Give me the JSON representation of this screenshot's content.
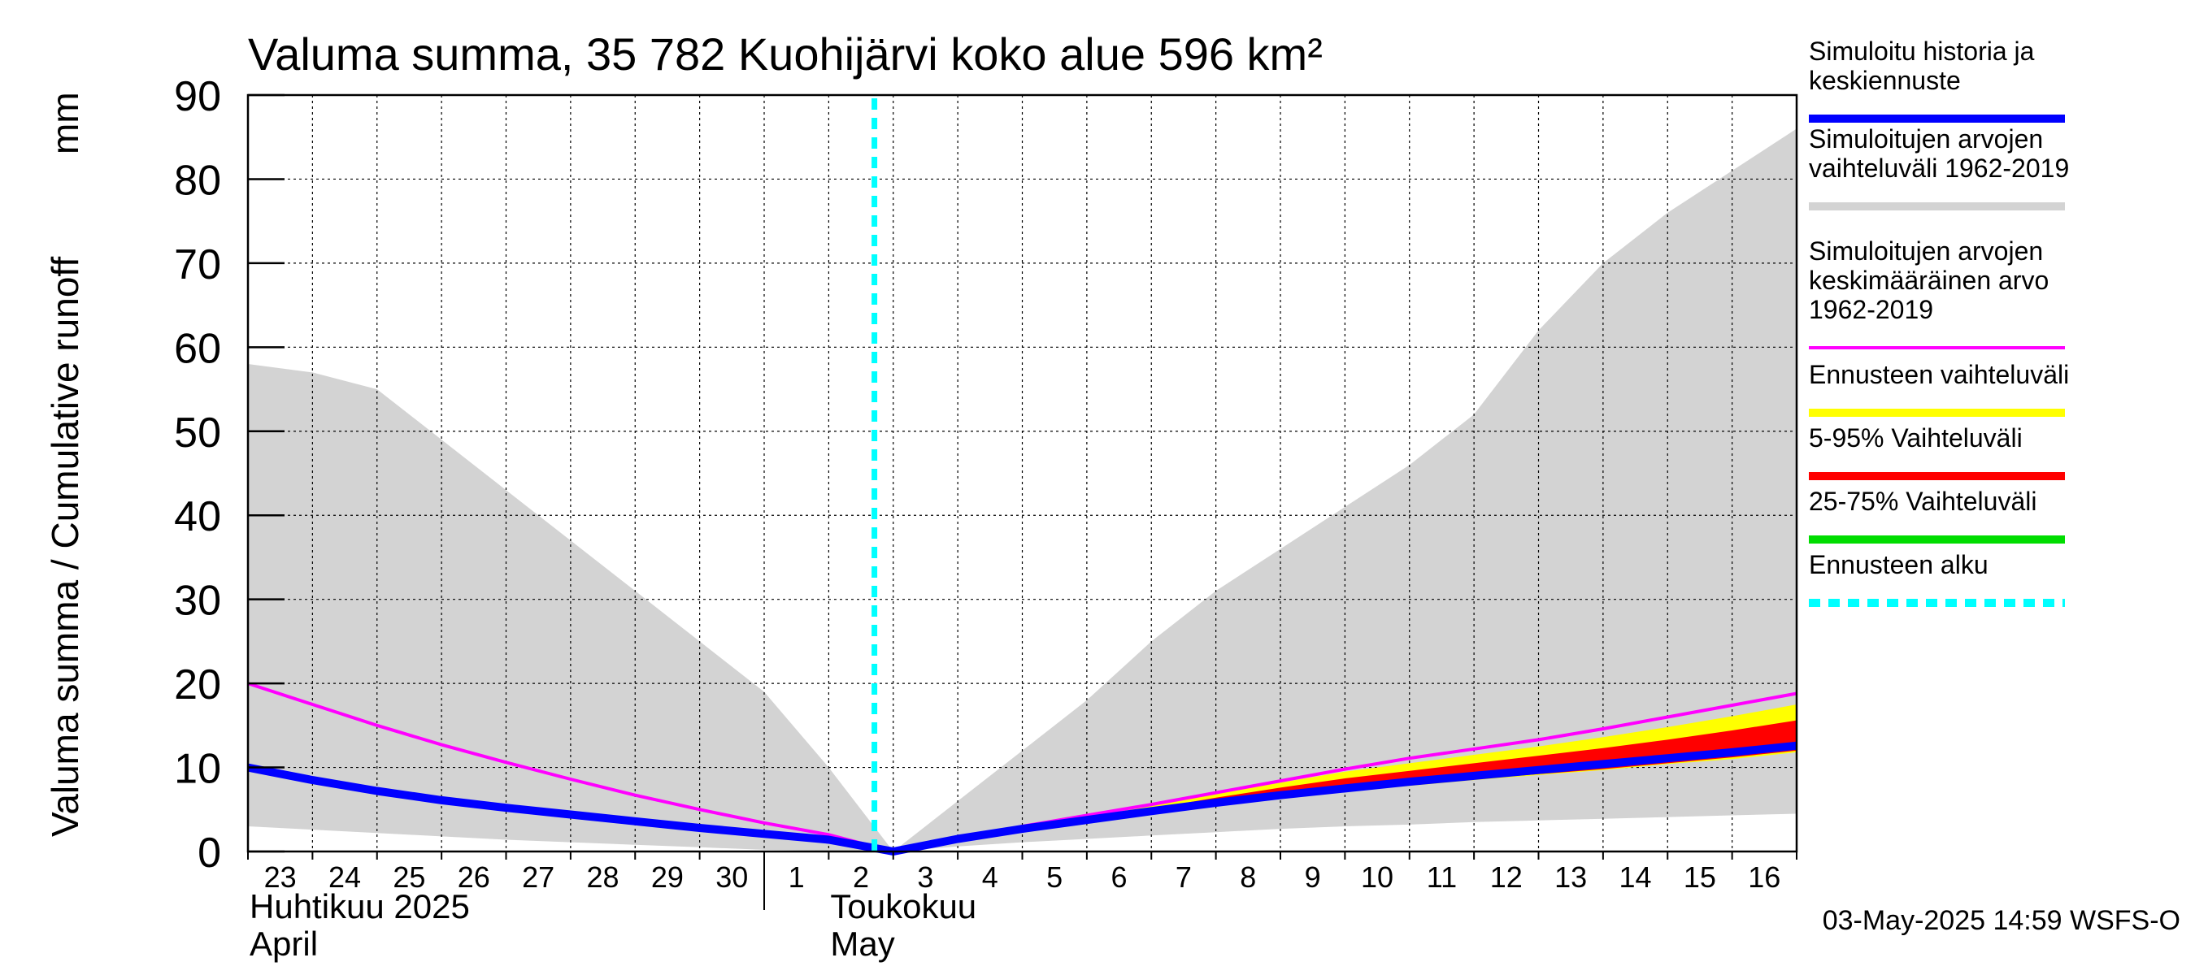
{
  "chart_data": {
    "type": "area",
    "title": "Valuma summa, 35 782 Kuohijärvi koko alue 596 km²",
    "ylabel": "Valuma summa / Cumulative runoff",
    "yunit": "mm",
    "ylim": [
      0,
      90
    ],
    "yticks": [
      0,
      10,
      20,
      30,
      40,
      50,
      60,
      70,
      80,
      90
    ],
    "x_start": "2025-04-23",
    "x_end": "2025-05-17",
    "day_labels": [
      "23",
      "24",
      "25",
      "26",
      "27",
      "28",
      "29",
      "30",
      "1",
      "2",
      "3",
      "4",
      "5",
      "6",
      "7",
      "8",
      "9",
      "10",
      "11",
      "12",
      "13",
      "14",
      "15",
      "16"
    ],
    "month_labels": [
      {
        "fi": "Huhtikuu  2025",
        "en": "April",
        "date": "2025-04-23"
      },
      {
        "fi": "Toukokuu",
        "en": "May",
        "date": "2025-05-02"
      }
    ],
    "forecast_start": "2025-05-02T17:00",
    "grid": true,
    "legend_position": "right",
    "footer": "03-May-2025 14:59 WSFS-O",
    "x": [
      "2025-04-23",
      "2025-04-24",
      "2025-04-25",
      "2025-04-26",
      "2025-04-27",
      "2025-04-28",
      "2025-04-29",
      "2025-04-30",
      "2025-05-01",
      "2025-05-02",
      "2025-05-03",
      "2025-05-04",
      "2025-05-05",
      "2025-05-06",
      "2025-05-07",
      "2025-05-08",
      "2025-05-09",
      "2025-05-10",
      "2025-05-11",
      "2025-05-12",
      "2025-05-13",
      "2025-05-14",
      "2025-05-15",
      "2025-05-16",
      "2025-05-17"
    ],
    "series": [
      {
        "key": "hist_range",
        "name": "Simuloitujen arvojen vaihteluväli 1962-2019",
        "color": "#d3d3d3",
        "upper": [
          58,
          57,
          55,
          49,
          43,
          37,
          31,
          25,
          19,
          10,
          0,
          6,
          12,
          18,
          25,
          31,
          36,
          41,
          46,
          52,
          62,
          70,
          76,
          81,
          86
        ],
        "lower": [
          3,
          2.6,
          2.2,
          1.8,
          1.4,
          1.1,
          0.8,
          0.5,
          0.2,
          0.1,
          0,
          0.6,
          1.1,
          1.5,
          1.9,
          2.3,
          2.7,
          3,
          3.2,
          3.5,
          3.7,
          3.9,
          4.1,
          4.3,
          4.5
        ]
      },
      {
        "key": "forecast_range",
        "name": "Ennusteen vaihteluväli",
        "color": "#ffff00",
        "x": [
          "2025-05-03T00:00",
          "2025-05-04",
          "2025-05-05",
          "2025-05-06",
          "2025-05-07",
          "2025-05-08",
          "2025-05-09",
          "2025-05-10",
          "2025-05-11",
          "2025-05-12",
          "2025-05-13",
          "2025-05-14",
          "2025-05-15",
          "2025-05-16",
          "2025-05-17"
        ],
        "upper": [
          0,
          1.6,
          2.9,
          4.1,
          5.4,
          6.9,
          8.2,
          9.5,
          10.5,
          11.5,
          12.5,
          13.6,
          14.8,
          16.1,
          17.5
        ],
        "lower": [
          0,
          1.4,
          2.6,
          3.6,
          4.6,
          5.5,
          6.3,
          7.1,
          7.8,
          8.5,
          9.1,
          9.7,
          10.4,
          11.0,
          11.8
        ]
      },
      {
        "key": "p5_95",
        "name": "5-95% Vaihteluväli",
        "color": "#ff0000",
        "x": [
          "2025-05-03T00:00",
          "2025-05-04",
          "2025-05-05",
          "2025-05-06",
          "2025-05-07",
          "2025-05-08",
          "2025-05-09",
          "2025-05-10",
          "2025-05-11",
          "2025-05-12",
          "2025-05-13",
          "2025-05-14",
          "2025-05-15",
          "2025-05-16",
          "2025-05-17"
        ],
        "upper": [
          0,
          1.55,
          2.8,
          3.95,
          5.1,
          6.4,
          7.6,
          8.7,
          9.6,
          10.5,
          11.4,
          12.3,
          13.3,
          14.4,
          15.6
        ],
        "lower": [
          0,
          1.45,
          2.6,
          3.65,
          4.7,
          5.6,
          6.4,
          7.2,
          7.9,
          8.6,
          9.2,
          9.8,
          10.5,
          11.2,
          12.0
        ]
      },
      {
        "key": "p25_75",
        "name": "25-75% Vaihteluväli",
        "color": "#00dd00",
        "x": [
          "2025-05-03T00:00",
          "2025-05-04",
          "2025-05-05",
          "2025-05-06",
          "2025-05-07",
          "2025-05-08",
          "2025-05-09",
          "2025-05-10",
          "2025-05-11",
          "2025-05-12",
          "2025-05-13",
          "2025-05-14",
          "2025-05-15",
          "2025-05-16",
          "2025-05-17"
        ],
        "upper": [
          0,
          1.5,
          2.7,
          3.8,
          4.85,
          5.9,
          6.8,
          7.6,
          8.4,
          9.1,
          9.8,
          10.5,
          11.3,
          12.1,
          13.0
        ],
        "lower": [
          0,
          1.48,
          2.65,
          3.72,
          4.75,
          5.75,
          6.6,
          7.4,
          8.1,
          8.8,
          9.5,
          10.1,
          10.8,
          11.5,
          12.2
        ]
      },
      {
        "key": "mean",
        "name": "Simuloitujen arvojen keskimääräinen arvo 1962-2019",
        "color": "#ff00ff",
        "values": [
          20,
          17.5,
          15,
          12.7,
          10.6,
          8.6,
          6.7,
          5.0,
          3.4,
          2.0,
          0,
          1.5,
          3.0,
          4.3,
          5.6,
          7.0,
          8.4,
          9.8,
          11.1,
          12.2,
          13.3,
          14.6,
          16.0,
          17.4,
          18.8
        ]
      },
      {
        "key": "history",
        "name": "Simuloitu historia ja keskiennuste",
        "color": "#0000ff",
        "x": [
          "2025-04-23",
          "2025-04-24",
          "2025-04-25",
          "2025-04-26",
          "2025-04-27",
          "2025-04-28",
          "2025-04-29",
          "2025-04-30",
          "2025-05-01",
          "2025-05-02",
          "2025-05-03T00:00",
          "2025-05-04",
          "2025-05-05",
          "2025-05-06",
          "2025-05-07",
          "2025-05-08",
          "2025-05-09",
          "2025-05-10",
          "2025-05-11",
          "2025-05-12",
          "2025-05-13",
          "2025-05-14",
          "2025-05-15",
          "2025-05-16",
          "2025-05-17"
        ],
        "values": [
          10,
          8.5,
          7.2,
          6.1,
          5.2,
          4.4,
          3.6,
          2.8,
          2.1,
          1.4,
          0,
          1.5,
          2.7,
          3.75,
          4.8,
          5.8,
          6.7,
          7.5,
          8.3,
          9.0,
          9.7,
          10.4,
          11.1,
          11.8,
          12.6
        ]
      }
    ],
    "legend": [
      {
        "label": "Simuloitu historia ja\nkeskiennuste",
        "color": "#0000ff",
        "style": "solid"
      },
      {
        "label": "Simuloitujen arvojen\nvaihteluväli 1962-2019",
        "color": "#d3d3d3",
        "style": "solid"
      },
      {
        "label": "Simuloitujen arvojen\nkeskimääräinen arvo\n   1962-2019",
        "color": "#ff00ff",
        "style": "thin"
      },
      {
        "label": "Ennusteen vaihteluväli",
        "color": "#ffff00",
        "style": "solid"
      },
      {
        "label": "5-95% Vaihteluväli",
        "color": "#ff0000",
        "style": "solid"
      },
      {
        "label": "25-75% Vaihteluväli",
        "color": "#00dd00",
        "style": "solid"
      },
      {
        "label": "Ennusteen alku",
        "color": "#00ffff",
        "style": "dashed"
      }
    ]
  }
}
